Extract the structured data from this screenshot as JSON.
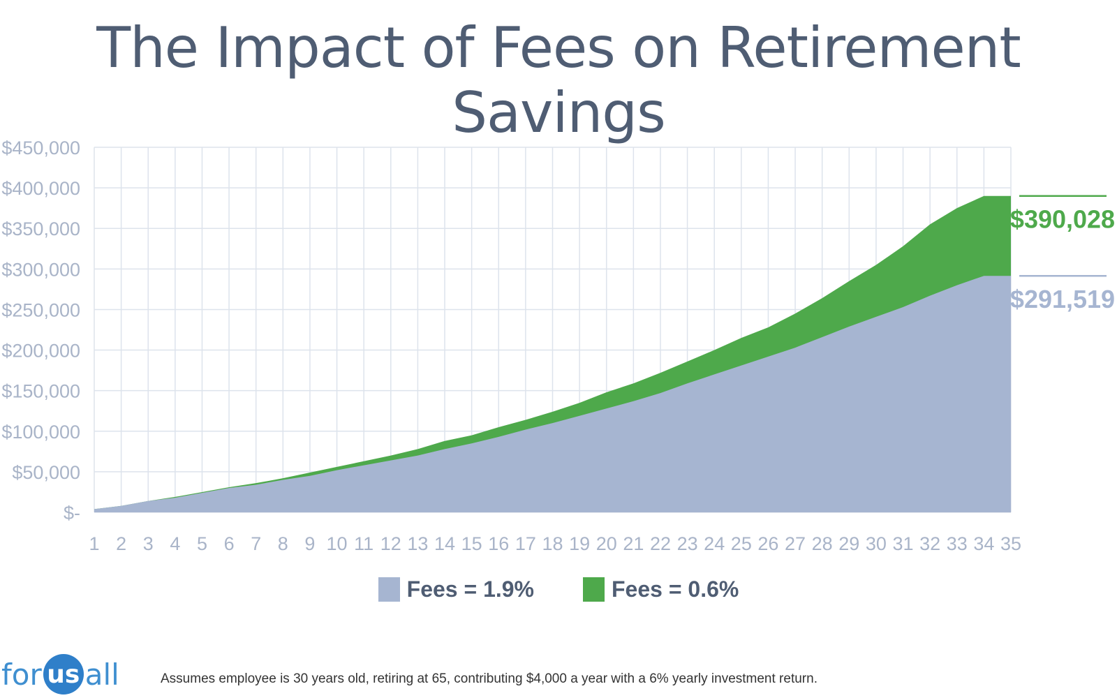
{
  "title": "The Impact of Fees on Retirement Savings",
  "chart_data": {
    "type": "area",
    "title": "The Impact of Fees on Retirement Savings",
    "x": [
      1,
      2,
      3,
      4,
      5,
      6,
      7,
      8,
      9,
      10,
      11,
      12,
      13,
      14,
      15,
      16,
      17,
      18,
      19,
      20,
      21,
      22,
      23,
      24,
      25,
      26,
      27,
      28,
      29,
      30,
      31,
      32,
      33,
      34,
      35
    ],
    "ylim": [
      0,
      450000
    ],
    "y_ticks": [
      "$-",
      "$50,000",
      "$100,000",
      "$150,000",
      "$200,000",
      "$250,000",
      "$300,000",
      "$350,000",
      "$400,000",
      "$450,000"
    ],
    "grid": true,
    "legend_position": "bottom",
    "series": [
      {
        "name": "Fees = 1.9%",
        "color": "#a6b5d1",
        "values": [
          4000,
          8000,
          14000,
          18000,
          24000,
          30000,
          34000,
          40000,
          45000,
          52000,
          58000,
          64000,
          70000,
          78000,
          85000,
          93000,
          102000,
          110000,
          119000,
          128000,
          137000,
          147000,
          159000,
          170000,
          181000,
          192000,
          203000,
          216000,
          229000,
          241000,
          253000,
          267000,
          280000,
          291519,
          291519
        ]
      },
      {
        "name": "Fees = 0.6%",
        "color": "#4ea94b",
        "values": [
          4000,
          8000,
          14000,
          19000,
          25000,
          31000,
          36000,
          42000,
          49000,
          56000,
          63000,
          70000,
          78000,
          88000,
          95000,
          105000,
          114000,
          124000,
          135000,
          148000,
          159000,
          172000,
          186000,
          200000,
          215000,
          228000,
          245000,
          264000,
          285000,
          305000,
          328000,
          355000,
          375000,
          390028,
          390028
        ]
      }
    ],
    "end_labels": [
      "$390,028",
      "$291,519"
    ]
  },
  "legend": [
    {
      "label": "Fees = 1.9%",
      "color": "#a6b5d1"
    },
    {
      "label": "Fees = 0.6%",
      "color": "#4ea94b"
    }
  ],
  "logo": {
    "left": "for",
    "middle": "us",
    "right": "all"
  },
  "footnote": "Assumes employee is 30 years old, retiring at 65, contributing $4,000 a year with a 6% yearly investment return."
}
